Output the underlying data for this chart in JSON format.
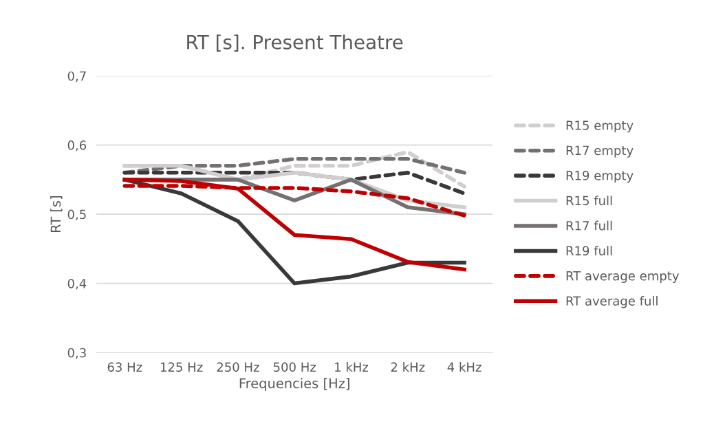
{
  "chart_data": {
    "type": "line",
    "title": "RT [s]. Present Theatre",
    "xlabel": "Frequencies [Hz]",
    "ylabel": "RT [s]",
    "categories": [
      "63 Hz",
      "125 Hz",
      "250 Hz",
      "500 Hz",
      "1 kHz",
      "2 kHz",
      "4 kHz"
    ],
    "series": [
      {
        "name": "R15 empty",
        "color": "#d0cece",
        "line_style": "dashed",
        "values": [
          0.57,
          0.57,
          0.55,
          0.57,
          0.57,
          0.59,
          0.54
        ]
      },
      {
        "name": "R17 empty",
        "color": "#767171",
        "line_style": "dashed",
        "values": [
          0.56,
          0.57,
          0.57,
          0.58,
          0.58,
          0.58,
          0.56
        ]
      },
      {
        "name": "R19 empty",
        "color": "#3a3838",
        "line_style": "dashed",
        "values": [
          0.56,
          0.56,
          0.56,
          0.56,
          0.55,
          0.56,
          0.53
        ]
      },
      {
        "name": "R15 full",
        "color": "#d0cece",
        "line_style": "solid",
        "values": [
          0.57,
          0.57,
          0.55,
          0.56,
          0.55,
          0.52,
          0.51
        ]
      },
      {
        "name": "R17 full",
        "color": "#767171",
        "line_style": "solid",
        "values": [
          0.55,
          0.55,
          0.55,
          0.52,
          0.55,
          0.51,
          0.5
        ]
      },
      {
        "name": "R19 full",
        "color": "#3a3838",
        "line_style": "solid",
        "values": [
          0.55,
          0.53,
          0.49,
          0.4,
          0.41,
          0.43,
          0.43
        ]
      },
      {
        "name": "RT average empty",
        "color": "#c00000",
        "line_style": "dashed",
        "values": [
          0.541,
          0.541,
          0.538,
          0.538,
          0.533,
          0.523,
          0.498
        ]
      },
      {
        "name": "RT average full",
        "color": "#c00000",
        "line_style": "solid",
        "values": [
          0.55,
          0.548,
          0.537,
          0.47,
          0.464,
          0.431,
          0.42
        ]
      }
    ],
    "ylim": [
      0.3,
      0.7
    ],
    "yticks": [
      {
        "value": 0.3,
        "label": "0,3"
      },
      {
        "value": 0.4,
        "label": "0,4"
      },
      {
        "value": 0.5,
        "label": "0,5"
      },
      {
        "value": 0.6,
        "label": "0,6"
      },
      {
        "value": 0.7,
        "label": "0,7"
      }
    ],
    "grid": "y",
    "legend": "right",
    "marker": "none"
  }
}
